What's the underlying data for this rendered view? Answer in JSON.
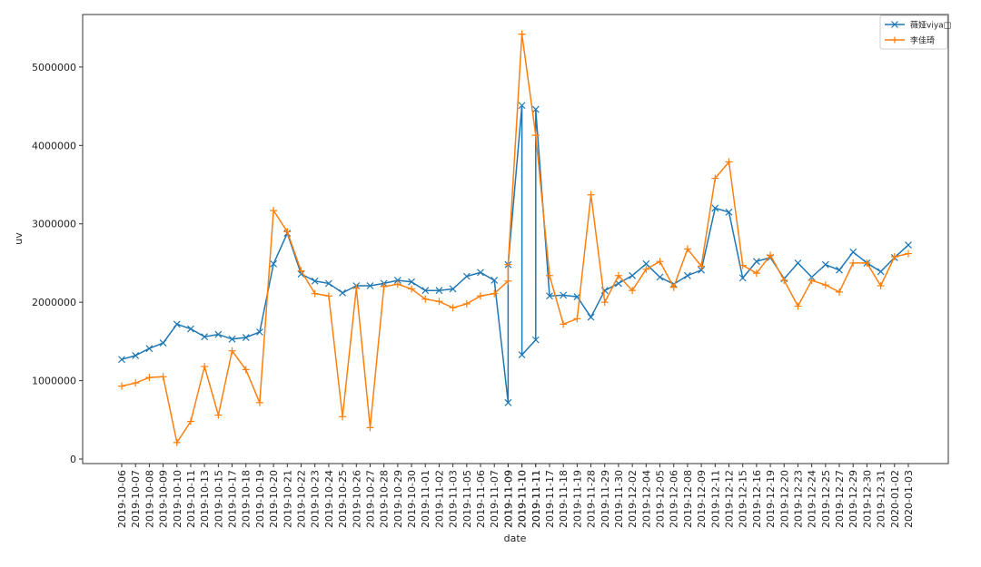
{
  "chart_data": {
    "type": "line",
    "x_label": "date",
    "y_label": "uv",
    "categories": [
      "2019-10-06",
      "2019-10-07",
      "2019-10-08",
      "2019-10-09",
      "2019-10-10",
      "2019-10-11",
      "2019-10-13",
      "2019-10-15",
      "2019-10-17",
      "2019-10-18",
      "2019-10-19",
      "2019-10-20",
      "2019-10-21",
      "2019-10-22",
      "2019-10-23",
      "2019-10-24",
      "2019-10-25",
      "2019-10-26",
      "2019-10-27",
      "2019-10-28",
      "2019-10-29",
      "2019-10-30",
      "2019-11-01",
      "2019-11-02",
      "2019-11-03",
      "2019-11-05",
      "2019-11-06",
      "2019-11-07",
      "2019-11-09",
      "2019-11-09",
      "2019-11-10",
      "2019-11-10",
      "2019-11-11",
      "2019-11-11",
      "2019-11-17",
      "2019-11-18",
      "2019-11-19",
      "2019-11-28",
      "2019-11-29",
      "2019-11-30",
      "2019-12-02",
      "2019-12-04",
      "2019-12-05",
      "2019-12-06",
      "2019-12-08",
      "2019-12-09",
      "2019-12-11",
      "2019-12-12",
      "2019-12-15",
      "2019-12-16",
      "2019-12-19",
      "2019-12-20",
      "2019-12-23",
      "2019-12-24",
      "2019-12-25",
      "2019-12-27",
      "2019-12-29",
      "2019-12-30",
      "2019-12-31",
      "2020-01-02",
      "2020-01-03"
    ],
    "series": [
      {
        "name": "薇娅viya□",
        "color": "#1f77b4",
        "marker": "x",
        "values": [
          1270000,
          1320000,
          1410000,
          1480000,
          1720000,
          1660000,
          1560000,
          1590000,
          1530000,
          1550000,
          1620000,
          2490000,
          2880000,
          2360000,
          2270000,
          2240000,
          2120000,
          2210000,
          2210000,
          2240000,
          2280000,
          2260000,
          2150000,
          2150000,
          2170000,
          2330000,
          2380000,
          2280000,
          720000,
          2480000,
          4510000,
          1330000,
          1520000,
          4460000,
          2080000,
          2090000,
          2070000,
          1810000,
          2150000,
          2240000,
          2340000,
          2490000,
          2320000,
          2230000,
          2340000,
          2410000,
          3200000,
          3150000,
          2310000,
          2520000,
          2570000,
          2300000,
          2500000,
          2320000,
          2480000,
          2410000,
          2640000,
          2500000,
          2390000,
          2570000,
          2730000
        ]
      },
      {
        "name": "李佳琦",
        "color": "#ff7f0e",
        "marker": "+",
        "values": [
          930000,
          970000,
          1040000,
          1050000,
          210000,
          480000,
          1180000,
          560000,
          1380000,
          1140000,
          720000,
          3170000,
          2900000,
          2400000,
          2110000,
          2080000,
          540000,
          2180000,
          400000,
          2200000,
          2230000,
          2170000,
          2040000,
          2010000,
          1930000,
          1980000,
          2080000,
          2110000,
          2270000,
          2480000,
          5420000,
          5420000,
          4130000,
          4130000,
          2340000,
          1720000,
          1790000,
          3370000,
          2000000,
          2340000,
          2150000,
          2420000,
          2520000,
          2190000,
          2680000,
          2460000,
          3580000,
          3790000,
          2470000,
          2370000,
          2600000,
          2280000,
          1950000,
          2280000,
          2220000,
          2130000,
          2500000,
          2500000,
          2210000,
          2580000,
          2620000
        ]
      }
    ],
    "ylim": [
      -58000,
      5670000
    ],
    "yticks": [
      0,
      1000000,
      2000000,
      3000000,
      4000000,
      5000000
    ],
    "legend": "upper right"
  }
}
